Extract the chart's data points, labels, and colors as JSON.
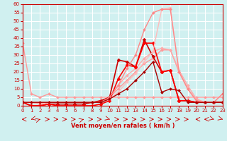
{
  "title": "Vent moyen/en rafales ( km/h )",
  "xlabel": "Vent moyen/en rafales ( km/h )",
  "xlim": [
    0,
    23
  ],
  "ylim": [
    0,
    60
  ],
  "yticks": [
    0,
    5,
    10,
    15,
    20,
    25,
    30,
    35,
    40,
    45,
    50,
    55,
    60
  ],
  "xticks": [
    0,
    1,
    2,
    3,
    4,
    5,
    6,
    7,
    8,
    9,
    10,
    11,
    12,
    13,
    14,
    15,
    16,
    17,
    18,
    19,
    20,
    21,
    22,
    23
  ],
  "bg_color": "#d0f0f0",
  "grid_color": "#ffffff",
  "series": [
    {
      "x": [
        0,
        1,
        2,
        3,
        4,
        5,
        6,
        7,
        8,
        9,
        10,
        11,
        12,
        13,
        14,
        15,
        16,
        17,
        18,
        19,
        20,
        21,
        22,
        23
      ],
      "y": [
        37,
        7,
        5,
        7,
        5,
        5,
        5,
        5,
        5,
        5,
        5,
        5,
        5,
        5,
        5,
        5,
        5,
        5,
        5,
        5,
        5,
        5,
        5,
        5
      ],
      "color": "#ff9999",
      "linewidth": 1.0,
      "marker": "D",
      "markersize": 2
    },
    {
      "x": [
        0,
        1,
        2,
        3,
        4,
        5,
        6,
        7,
        8,
        9,
        10,
        11,
        12,
        13,
        14,
        15,
        16,
        17,
        18,
        19,
        20,
        21,
        22,
        23
      ],
      "y": [
        2,
        2,
        1,
        2,
        2,
        2,
        2,
        2,
        2,
        3,
        5,
        10,
        15,
        20,
        25,
        28,
        33,
        33,
        20,
        10,
        3,
        2,
        2,
        2
      ],
      "color": "#ff9999",
      "linewidth": 1.0,
      "marker": "D",
      "markersize": 2
    },
    {
      "x": [
        0,
        1,
        2,
        3,
        4,
        5,
        6,
        7,
        8,
        9,
        10,
        11,
        12,
        13,
        14,
        15,
        16,
        17,
        18,
        19,
        20,
        21,
        22,
        23
      ],
      "y": [
        2,
        2,
        1,
        2,
        2,
        2,
        2,
        2,
        2,
        3,
        5,
        12,
        18,
        22,
        28,
        32,
        34,
        33,
        21,
        12,
        4,
        2,
        2,
        2
      ],
      "color": "#ffaaaa",
      "linewidth": 1.0,
      "marker": "D",
      "markersize": 2
    },
    {
      "x": [
        0,
        1,
        2,
        3,
        4,
        5,
        6,
        7,
        8,
        9,
        10,
        11,
        12,
        13,
        14,
        15,
        16,
        17,
        18,
        19,
        20,
        21,
        22,
        23
      ],
      "y": [
        2,
        0,
        0,
        1,
        1,
        1,
        1,
        1,
        2,
        3,
        5,
        27,
        26,
        23,
        39,
        29,
        20,
        21,
        3,
        3,
        2,
        2,
        2,
        2
      ],
      "color": "#cc0000",
      "linewidth": 1.2,
      "marker": "D",
      "markersize": 2.5
    },
    {
      "x": [
        0,
        1,
        2,
        3,
        4,
        5,
        6,
        7,
        8,
        9,
        10,
        11,
        12,
        13,
        14,
        15,
        16,
        17,
        18,
        19,
        20,
        21,
        22,
        23
      ],
      "y": [
        2,
        0,
        0,
        1,
        0,
        0,
        0,
        0,
        0,
        1,
        3,
        16,
        24,
        23,
        37,
        37,
        20,
        21,
        3,
        3,
        2,
        2,
        2,
        2
      ],
      "color": "#ff0000",
      "linewidth": 1.2,
      "marker": "D",
      "markersize": 2.5
    },
    {
      "x": [
        0,
        1,
        2,
        3,
        4,
        5,
        6,
        7,
        8,
        9,
        10,
        11,
        12,
        13,
        14,
        15,
        16,
        17,
        18,
        19,
        20,
        21,
        22,
        23
      ],
      "y": [
        2,
        2,
        2,
        2,
        2,
        2,
        2,
        2,
        2,
        2,
        4,
        8,
        14,
        19,
        26,
        32,
        57,
        58,
        20,
        10,
        3,
        2,
        2,
        7
      ],
      "color": "#ffbbbb",
      "linewidth": 1.0,
      "marker": "D",
      "markersize": 2
    },
    {
      "x": [
        0,
        1,
        2,
        3,
        4,
        5,
        6,
        7,
        8,
        9,
        10,
        11,
        12,
        13,
        14,
        15,
        16,
        17,
        18,
        19,
        20,
        21,
        22,
        23
      ],
      "y": [
        2,
        2,
        2,
        2,
        2,
        2,
        2,
        2,
        2,
        2,
        5,
        12,
        22,
        30,
        45,
        55,
        57,
        57,
        20,
        10,
        3,
        2,
        2,
        7
      ],
      "color": "#ff8888",
      "linewidth": 1.0,
      "marker": "D",
      "markersize": 2
    },
    {
      "x": [
        0,
        1,
        2,
        3,
        4,
        5,
        6,
        7,
        8,
        9,
        10,
        11,
        12,
        13,
        14,
        15,
        16,
        17,
        18,
        19,
        20,
        21,
        22,
        23
      ],
      "y": [
        2,
        2,
        2,
        2,
        2,
        2,
        2,
        2,
        2,
        2,
        4,
        7,
        10,
        15,
        20,
        26,
        8,
        10,
        9,
        2,
        2,
        2,
        2,
        2
      ],
      "color": "#aa0000",
      "linewidth": 1.0,
      "marker": "D",
      "markersize": 2
    }
  ],
  "wind_arrows": {
    "x": [
      0,
      1,
      2,
      3,
      4,
      5,
      6,
      7,
      8,
      9,
      10,
      11,
      12,
      13,
      14,
      15,
      16,
      17,
      18,
      19,
      20,
      21,
      22,
      23
    ],
    "angles": [
      270,
      225,
      45,
      90,
      90,
      90,
      90,
      45,
      90,
      90,
      135,
      90,
      90,
      90,
      90,
      90,
      90,
      90,
      90,
      90,
      270,
      270,
      135,
      135
    ]
  }
}
